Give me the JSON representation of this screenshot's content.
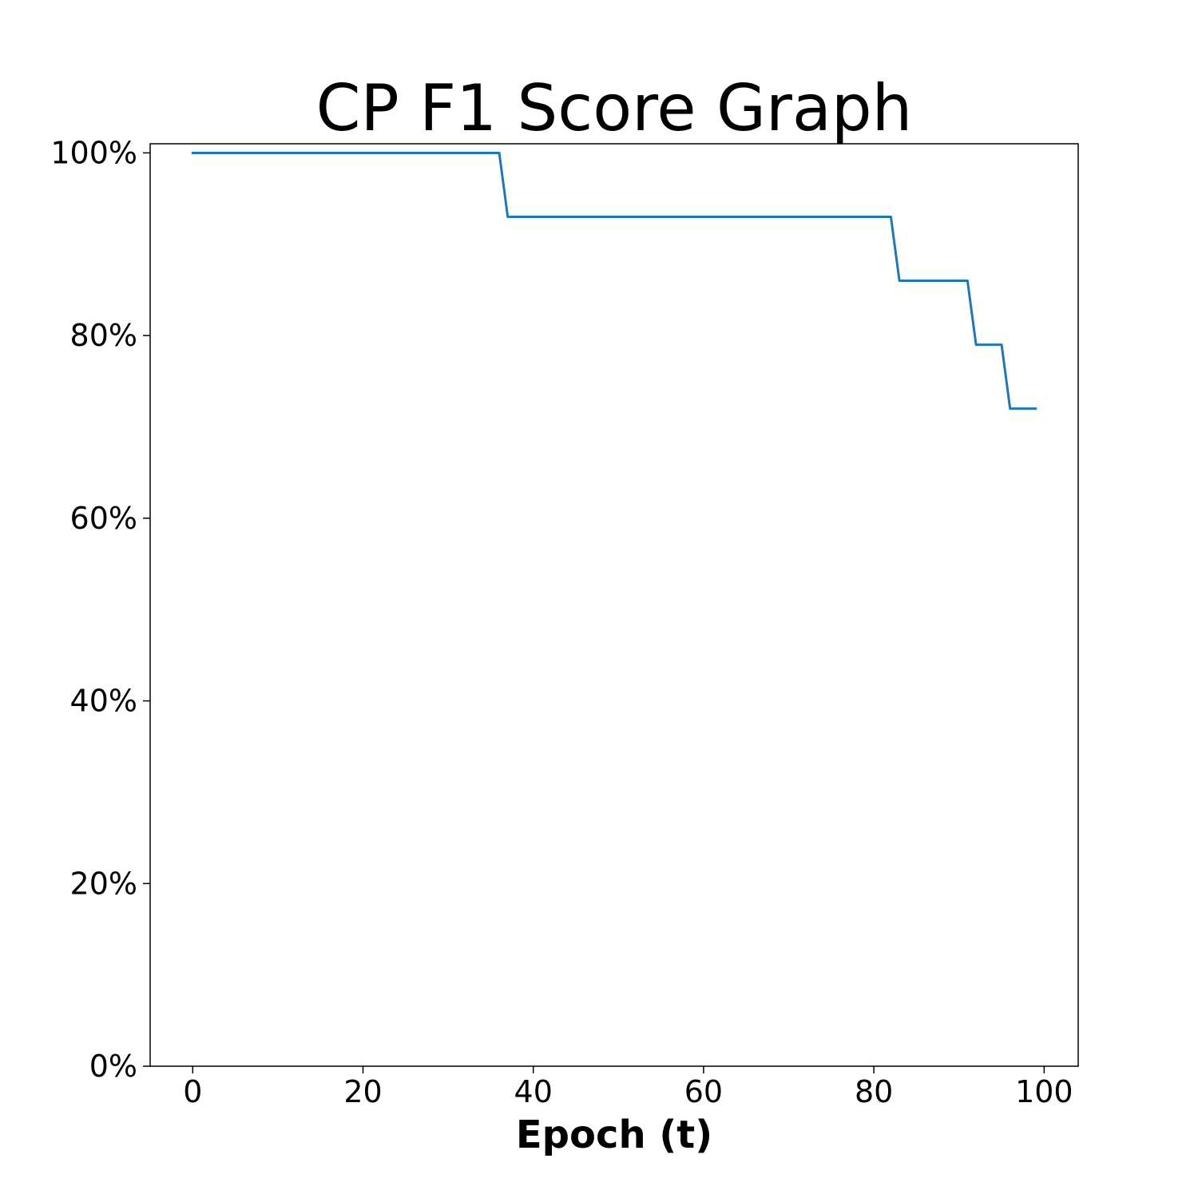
{
  "chart_data": {
    "type": "line",
    "title": "CP F1 Score Graph",
    "xlabel": "Epoch (t)",
    "ylabel": "",
    "xlim": [
      -5,
      104
    ],
    "ylim": [
      0,
      101
    ],
    "x_ticks": [
      0,
      20,
      40,
      60,
      80,
      100
    ],
    "y_ticks": [
      0,
      20,
      40,
      60,
      80,
      100
    ],
    "x_tick_labels": [
      "0",
      "20",
      "40",
      "60",
      "80",
      "100"
    ],
    "y_tick_labels": [
      "0%",
      "20%",
      "40%",
      "60%",
      "80%",
      "100%"
    ],
    "grid": false,
    "legend": "none",
    "series": [
      {
        "color": "#1f77b4",
        "x": [
          0,
          36,
          37,
          82,
          83,
          91,
          92,
          95,
          96,
          99
        ],
        "y": [
          100,
          100,
          93,
          93,
          86,
          86,
          79,
          79,
          72,
          72
        ]
      }
    ]
  }
}
